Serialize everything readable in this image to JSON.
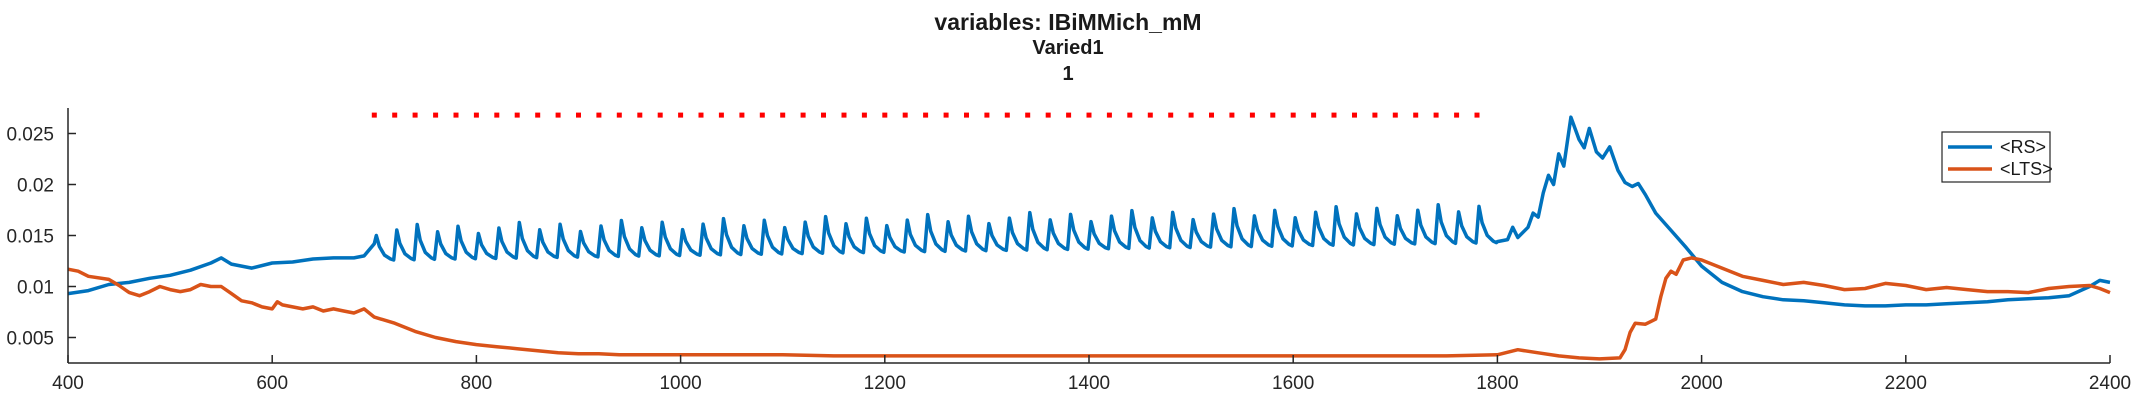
{
  "chart_data": {
    "type": "line",
    "title_lines": [
      "variables: IBiMMich_mM",
      "Varied1",
      "1"
    ],
    "xlabel": "",
    "ylabel": "",
    "xlim": [
      400,
      2400
    ],
    "ylim": [
      0.0025,
      0.0275
    ],
    "xticks": [
      400,
      600,
      800,
      1000,
      1200,
      1400,
      1600,
      1800,
      2000,
      2200,
      2400
    ],
    "xtick_labels": [
      "400",
      "600",
      "800",
      "1000",
      "1200",
      "1400",
      "1600",
      "1800",
      "2000",
      "2200",
      "2400"
    ],
    "yticks": [
      0.005,
      0.01,
      0.015,
      0.02,
      0.025
    ],
    "ytick_labels": [
      "0.005",
      "0.01",
      "0.015",
      "0.02",
      "0.025"
    ],
    "grid": false,
    "legend_position": "top-right",
    "stimulus_markers": {
      "color": "#ff0000",
      "y": 0.0268,
      "x_start": 700,
      "x_end": 1780,
      "step": 20
    },
    "series": [
      {
        "name": "<RS>",
        "color": "#0072BD",
        "points": [
          [
            400,
            0.0093
          ],
          [
            420,
            0.0096
          ],
          [
            440,
            0.0102
          ],
          [
            460,
            0.0104
          ],
          [
            480,
            0.0108
          ],
          [
            500,
            0.0111
          ],
          [
            520,
            0.0116
          ],
          [
            540,
            0.0123
          ],
          [
            550,
            0.0128
          ],
          [
            560,
            0.0122
          ],
          [
            580,
            0.0118
          ],
          [
            600,
            0.0123
          ],
          [
            620,
            0.0124
          ],
          [
            640,
            0.0127
          ],
          [
            660,
            0.0128
          ],
          [
            680,
            0.0128
          ],
          [
            690,
            0.013
          ],
          [
            700,
            0.0142
          ]
        ],
        "spike_train": {
          "x_start": 700,
          "x_end": 1800,
          "period": 20,
          "base_start": 0.0126,
          "base_end": 0.0143,
          "peak_start": 0.0155,
          "peak_end": 0.0176
        },
        "tail_points": [
          [
            1800,
            0.0144
          ],
          [
            1810,
            0.0146
          ],
          [
            1815,
            0.0158
          ],
          [
            1820,
            0.0148
          ],
          [
            1830,
            0.0158
          ],
          [
            1835,
            0.0172
          ],
          [
            1840,
            0.0168
          ],
          [
            1845,
            0.0192
          ],
          [
            1850,
            0.0209
          ],
          [
            1855,
            0.02
          ],
          [
            1860,
            0.023
          ],
          [
            1865,
            0.0218
          ],
          [
            1872,
            0.0266
          ],
          [
            1880,
            0.0244
          ],
          [
            1885,
            0.0236
          ],
          [
            1890,
            0.0255
          ],
          [
            1897,
            0.0232
          ],
          [
            1903,
            0.0226
          ],
          [
            1910,
            0.0237
          ],
          [
            1918,
            0.0214
          ],
          [
            1925,
            0.0202
          ],
          [
            1932,
            0.0198
          ],
          [
            1938,
            0.0201
          ],
          [
            1945,
            0.019
          ],
          [
            1955,
            0.0172
          ],
          [
            1970,
            0.0155
          ],
          [
            1985,
            0.0138
          ],
          [
            2000,
            0.012
          ],
          [
            2020,
            0.0104
          ],
          [
            2040,
            0.0095
          ],
          [
            2060,
            0.009
          ],
          [
            2080,
            0.0087
          ],
          [
            2100,
            0.0086
          ],
          [
            2120,
            0.0084
          ],
          [
            2140,
            0.0082
          ],
          [
            2160,
            0.0081
          ],
          [
            2180,
            0.0081
          ],
          [
            2200,
            0.0082
          ],
          [
            2220,
            0.0082
          ],
          [
            2240,
            0.0083
          ],
          [
            2260,
            0.0084
          ],
          [
            2280,
            0.0085
          ],
          [
            2300,
            0.0087
          ],
          [
            2320,
            0.0088
          ],
          [
            2340,
            0.0089
          ],
          [
            2360,
            0.0091
          ],
          [
            2380,
            0.01
          ],
          [
            2390,
            0.0106
          ],
          [
            2400,
            0.0104
          ]
        ]
      },
      {
        "name": "<LTS>",
        "color": "#D95319",
        "points": [
          [
            400,
            0.0117
          ],
          [
            410,
            0.0115
          ],
          [
            420,
            0.011
          ],
          [
            440,
            0.0107
          ],
          [
            450,
            0.0101
          ],
          [
            460,
            0.0094
          ],
          [
            470,
            0.0091
          ],
          [
            480,
            0.0095
          ],
          [
            490,
            0.01
          ],
          [
            500,
            0.0097
          ],
          [
            510,
            0.0095
          ],
          [
            520,
            0.0097
          ],
          [
            530,
            0.0102
          ],
          [
            540,
            0.01
          ],
          [
            550,
            0.01
          ],
          [
            560,
            0.0093
          ],
          [
            570,
            0.0086
          ],
          [
            580,
            0.0084
          ],
          [
            590,
            0.008
          ],
          [
            600,
            0.0078
          ],
          [
            605,
            0.0085
          ],
          [
            610,
            0.0082
          ],
          [
            620,
            0.008
          ],
          [
            630,
            0.0078
          ],
          [
            640,
            0.008
          ],
          [
            650,
            0.0076
          ],
          [
            660,
            0.0078
          ],
          [
            670,
            0.0076
          ],
          [
            680,
            0.0074
          ],
          [
            690,
            0.0078
          ],
          [
            700,
            0.007
          ],
          [
            720,
            0.0064
          ],
          [
            740,
            0.0056
          ],
          [
            760,
            0.005
          ],
          [
            780,
            0.0046
          ],
          [
            800,
            0.0043
          ],
          [
            820,
            0.0041
          ],
          [
            840,
            0.0039
          ],
          [
            860,
            0.0037
          ],
          [
            880,
            0.0035
          ],
          [
            900,
            0.0034
          ],
          [
            920,
            0.0034
          ],
          [
            940,
            0.0033
          ],
          [
            960,
            0.0033
          ],
          [
            980,
            0.0033
          ],
          [
            1000,
            0.0033
          ],
          [
            1050,
            0.0033
          ],
          [
            1100,
            0.0033
          ],
          [
            1150,
            0.0032
          ],
          [
            1200,
            0.0032
          ],
          [
            1250,
            0.0032
          ],
          [
            1300,
            0.0032
          ],
          [
            1350,
            0.0032
          ],
          [
            1400,
            0.0032
          ],
          [
            1450,
            0.0032
          ],
          [
            1500,
            0.0032
          ],
          [
            1550,
            0.0032
          ],
          [
            1600,
            0.0032
          ],
          [
            1650,
            0.0032
          ],
          [
            1700,
            0.0032
          ],
          [
            1750,
            0.0032
          ],
          [
            1800,
            0.0033
          ],
          [
            1820,
            0.0038
          ],
          [
            1840,
            0.0035
          ],
          [
            1860,
            0.0032
          ],
          [
            1880,
            0.003
          ],
          [
            1900,
            0.0029
          ],
          [
            1920,
            0.003
          ],
          [
            1925,
            0.0038
          ],
          [
            1930,
            0.0055
          ],
          [
            1935,
            0.0064
          ],
          [
            1945,
            0.0063
          ],
          [
            1955,
            0.0068
          ],
          [
            1960,
            0.009
          ],
          [
            1965,
            0.0108
          ],
          [
            1970,
            0.0115
          ],
          [
            1975,
            0.0112
          ],
          [
            1982,
            0.0126
          ],
          [
            1990,
            0.0128
          ],
          [
            2000,
            0.0126
          ],
          [
            2020,
            0.0118
          ],
          [
            2040,
            0.011
          ],
          [
            2060,
            0.0106
          ],
          [
            2080,
            0.0102
          ],
          [
            2100,
            0.0104
          ],
          [
            2120,
            0.0101
          ],
          [
            2140,
            0.0097
          ],
          [
            2160,
            0.0098
          ],
          [
            2180,
            0.0103
          ],
          [
            2200,
            0.0101
          ],
          [
            2220,
            0.0097
          ],
          [
            2240,
            0.0099
          ],
          [
            2260,
            0.0097
          ],
          [
            2280,
            0.0095
          ],
          [
            2300,
            0.0095
          ],
          [
            2320,
            0.0094
          ],
          [
            2340,
            0.0098
          ],
          [
            2360,
            0.01
          ],
          [
            2380,
            0.0101
          ],
          [
            2390,
            0.0098
          ],
          [
            2400,
            0.0094
          ]
        ]
      }
    ]
  }
}
